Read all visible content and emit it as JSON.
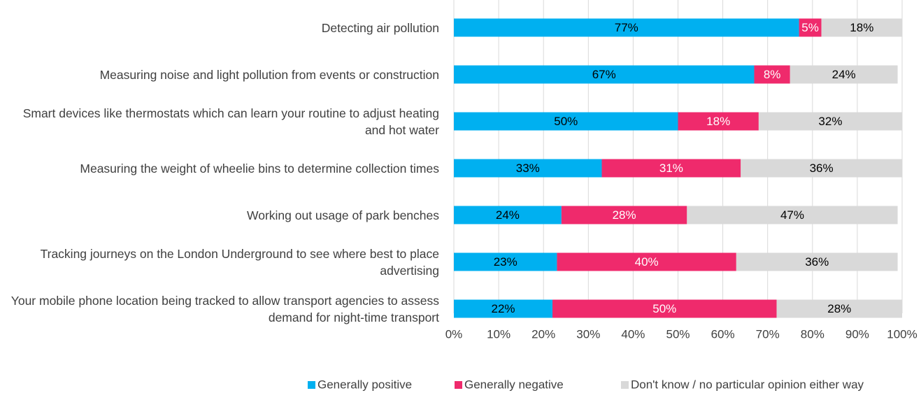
{
  "chart_data": {
    "type": "bar",
    "orientation": "horizontal",
    "stacked": true,
    "categories": [
      "Detecting air pollution",
      "Measuring noise and light pollution from events or construction",
      "Smart devices like thermostats which can learn your routine to adjust heating and hot water",
      "Measuring the weight of wheelie bins to determine collection times",
      "Working out usage of park benches",
      "Tracking journeys on the London Underground to see where best to place advertising",
      "Your mobile phone location being tracked to allow transport agencies to assess demand for night-time transport"
    ],
    "series": [
      {
        "name": "Generally positive",
        "color": "#00b0f0",
        "label_color": "#000000",
        "values": [
          77,
          67,
          50,
          33,
          24,
          23,
          22
        ],
        "value_labels": [
          "77%",
          "67%",
          "50%",
          "33%",
          "24%",
          "23%",
          "22%"
        ]
      },
      {
        "name": "Generally negative",
        "color": "#ef2a6c",
        "label_color": "#ffffff",
        "values": [
          5,
          8,
          18,
          31,
          28,
          40,
          50
        ],
        "value_labels": [
          "5%",
          "8%",
          "18%",
          "31%",
          "28%",
          "40%",
          "50%"
        ]
      },
      {
        "name": "Don't know / no particular opinion either way",
        "color": "#d9d9d9",
        "label_color": "#000000",
        "values": [
          18,
          24,
          32,
          36,
          47,
          36,
          28
        ],
        "value_labels": [
          "18%",
          "24%",
          "32%",
          "36%",
          "47%",
          "36%",
          "28%"
        ]
      }
    ],
    "xlim": [
      0,
      100
    ],
    "xticks": [
      {
        "value": 0,
        "label": "0%"
      },
      {
        "value": 10,
        "label": "10%"
      },
      {
        "value": 20,
        "label": "20%"
      },
      {
        "value": 30,
        "label": "30%"
      },
      {
        "value": 40,
        "label": "40%"
      },
      {
        "value": 50,
        "label": "50%"
      },
      {
        "value": 60,
        "label": "60%"
      },
      {
        "value": 70,
        "label": "70%"
      },
      {
        "value": 80,
        "label": "80%"
      },
      {
        "value": 90,
        "label": "90%"
      },
      {
        "value": 100,
        "label": "100%"
      }
    ],
    "grid": true,
    "legend": "bottom"
  }
}
